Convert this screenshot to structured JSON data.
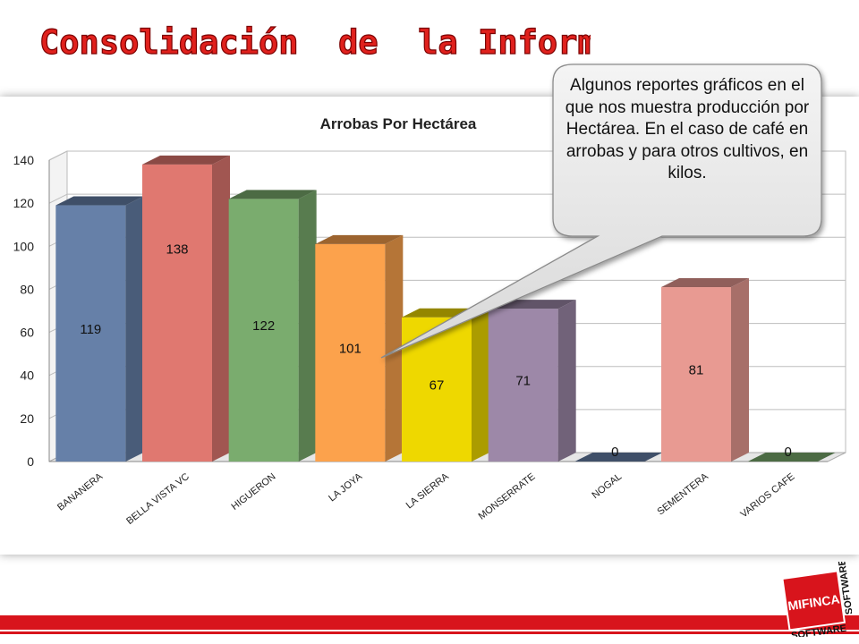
{
  "slide": {
    "title": "Consolidación  de  la Información",
    "callout": "Algunos reportes gráficos en el que nos muestra producción por Hectárea. En el caso de café en arrobas y para otros cultivos, en kilos.",
    "logo_text_1": "MIFINCA",
    "logo_text_2": "SOFTWARE",
    "logo_text_3": "SOFTWARE"
  },
  "colors": {
    "title_red": "#e0211d",
    "accent_bar": "#d8141c",
    "bars": [
      "#6680a8",
      "#e07870",
      "#7aac6e",
      "#fca24c",
      "#eed800",
      "#9d88a8",
      "#6680a8",
      "#e89a92",
      "#7aac6e"
    ]
  },
  "chart_data": {
    "type": "bar",
    "title": "Arrobas Por Hectárea",
    "categories": [
      "BANANERA",
      "BELLA VISTA VC",
      "HIGUERON",
      "LA JOYA",
      "LA SIERRA",
      "MONSERRATE",
      "NOGAL",
      "SEMENTERA",
      "VARIOS CAFE"
    ],
    "values": [
      119,
      138,
      122,
      101,
      67,
      71,
      0,
      81,
      0
    ],
    "data_labels": [
      "119",
      "138",
      "122",
      "101",
      "67",
      "71",
      "0",
      "81",
      "0"
    ],
    "ylim": [
      0,
      140
    ],
    "yticks": [
      0,
      20,
      40,
      60,
      80,
      100,
      120,
      140
    ],
    "grid": true,
    "style": "3d-column"
  }
}
